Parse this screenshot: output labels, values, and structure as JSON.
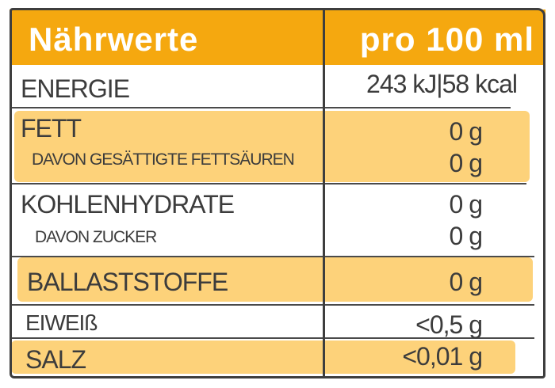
{
  "header": {
    "title": "Nährwerte",
    "per": "pro 100 ml"
  },
  "colors": {
    "header": "#f5a80f",
    "highlight": "#fdd27a",
    "text": "#3c3c3c"
  },
  "rows": [
    {
      "label": "ENERGIE",
      "value": "243 kJ|58 kcal"
    },
    {
      "label": "FETT",
      "value": "0 g"
    },
    {
      "label": "DAVON GESÄTTIGTE FETTSÄUREN",
      "value": "0 g"
    },
    {
      "label": "KOHLENHYDRATE",
      "value": "0 g"
    },
    {
      "label": "DAVON ZUCKER",
      "value": "0 g"
    },
    {
      "label": "BALLASTSTOFFE",
      "value": "0 g"
    },
    {
      "label": "EIWEIß",
      "value": "<0,5 g"
    },
    {
      "label": "SALZ",
      "value": "<0,01 g"
    }
  ]
}
